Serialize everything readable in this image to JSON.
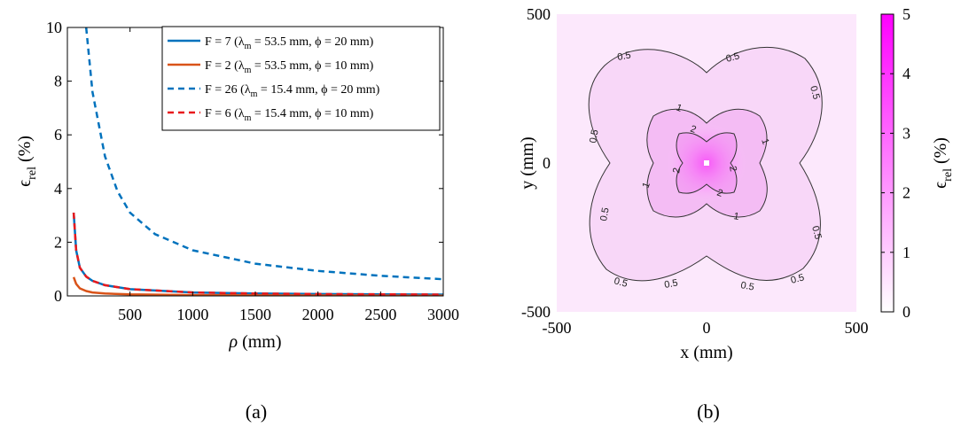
{
  "chart_data": [
    {
      "type": "line",
      "caption": "(a)",
      "xlabel_symbol": "ρ",
      "xlabel_unit": "(mm)",
      "ylabel_symbol": "ϵ",
      "ylabel_sub": "rel",
      "ylabel_unit": "(%)",
      "xlim": [
        0,
        3000
      ],
      "ylim": [
        0,
        10
      ],
      "xticks": [
        500,
        1000,
        1500,
        2000,
        2500,
        3000
      ],
      "yticks": [
        0,
        2,
        4,
        6,
        8,
        10
      ],
      "legend_position": "top-right",
      "series": [
        {
          "name": "F = 7   (λm = 53.5 mm, ϕ = 20 mm)",
          "name_pre": "F = 7   (λ",
          "name_sub": "m",
          "name_post": " = 53.5 mm, ϕ = 20 mm)",
          "color": "#0072BD",
          "dash": "solid",
          "x": [
            50,
            70,
            100,
            150,
            200,
            300,
            500,
            1000,
            1500,
            2000,
            2500,
            3000
          ],
          "y": [
            3.1,
            1.7,
            1.05,
            0.72,
            0.56,
            0.4,
            0.25,
            0.13,
            0.09,
            0.07,
            0.06,
            0.05
          ]
        },
        {
          "name": "F = 2   (λm = 53.5 mm, ϕ = 10 mm)",
          "name_pre": "F = 2   (λ",
          "name_sub": "m",
          "name_post": " = 53.5 mm, ϕ = 10 mm)",
          "color": "#D95319",
          "dash": "solid",
          "x": [
            50,
            70,
            100,
            150,
            200,
            300,
            500,
            1000,
            1500,
            2000,
            2500,
            3000
          ],
          "y": [
            0.7,
            0.45,
            0.28,
            0.18,
            0.13,
            0.09,
            0.055,
            0.03,
            0.02,
            0.015,
            0.012,
            0.01
          ]
        },
        {
          "name": "F = 26 (λm = 15.4 mm, ϕ = 20 mm)",
          "name_pre": "F = 26 (λ",
          "name_sub": "m",
          "name_post": " = 15.4 mm, ϕ = 20 mm)",
          "color": "#0072BD",
          "dash": "dashed",
          "x": [
            150,
            200,
            300,
            400,
            500,
            700,
            1000,
            1500,
            2000,
            2500,
            3000
          ],
          "y": [
            10,
            7.6,
            5.2,
            3.9,
            3.1,
            2.3,
            1.7,
            1.2,
            0.93,
            0.75,
            0.62
          ]
        },
        {
          "name": "F = 6   (λm = 15.4 mm, ϕ = 10 mm)",
          "name_pre": "F = 6   (λ",
          "name_sub": "m",
          "name_post": " = 15.4 mm, ϕ = 10 mm)",
          "color": "#E8191C",
          "dash": "dashed",
          "x": [
            50,
            70,
            100,
            150,
            200,
            300,
            500,
            1000,
            1500,
            2000,
            2500,
            3000
          ],
          "y": [
            3.1,
            1.7,
            1.05,
            0.72,
            0.56,
            0.4,
            0.25,
            0.13,
            0.09,
            0.07,
            0.06,
            0.05
          ]
        }
      ]
    },
    {
      "type": "heatmap",
      "caption": "(b)",
      "xlabel": "x (mm)",
      "ylabel": "y (mm)",
      "xlim": [
        -500,
        500
      ],
      "ylim": [
        -500,
        500
      ],
      "xticks": [
        -500,
        0,
        500
      ],
      "yticks": [
        -500,
        0,
        500
      ],
      "colorbar": {
        "label_symbol": "ϵ",
        "label_sub": "rel",
        "label_unit": "(%)",
        "range": [
          0,
          5
        ],
        "ticks": [
          0,
          1,
          2,
          3,
          4,
          5
        ],
        "color_low": "#FFFFFF",
        "color_high": "#FF00FF"
      },
      "contours": [
        {
          "level": 0.5,
          "labels": [
            "0.5",
            "0.5",
            "0.5",
            "0.5",
            "0.5",
            "0.5",
            "0.5",
            "0.5",
            "0.5",
            "0.5"
          ]
        },
        {
          "level": 1,
          "labels": [
            "1",
            "1",
            "1",
            "1"
          ]
        },
        {
          "level": 2,
          "labels": [
            "2",
            "2",
            "2",
            "2"
          ]
        }
      ]
    }
  ]
}
